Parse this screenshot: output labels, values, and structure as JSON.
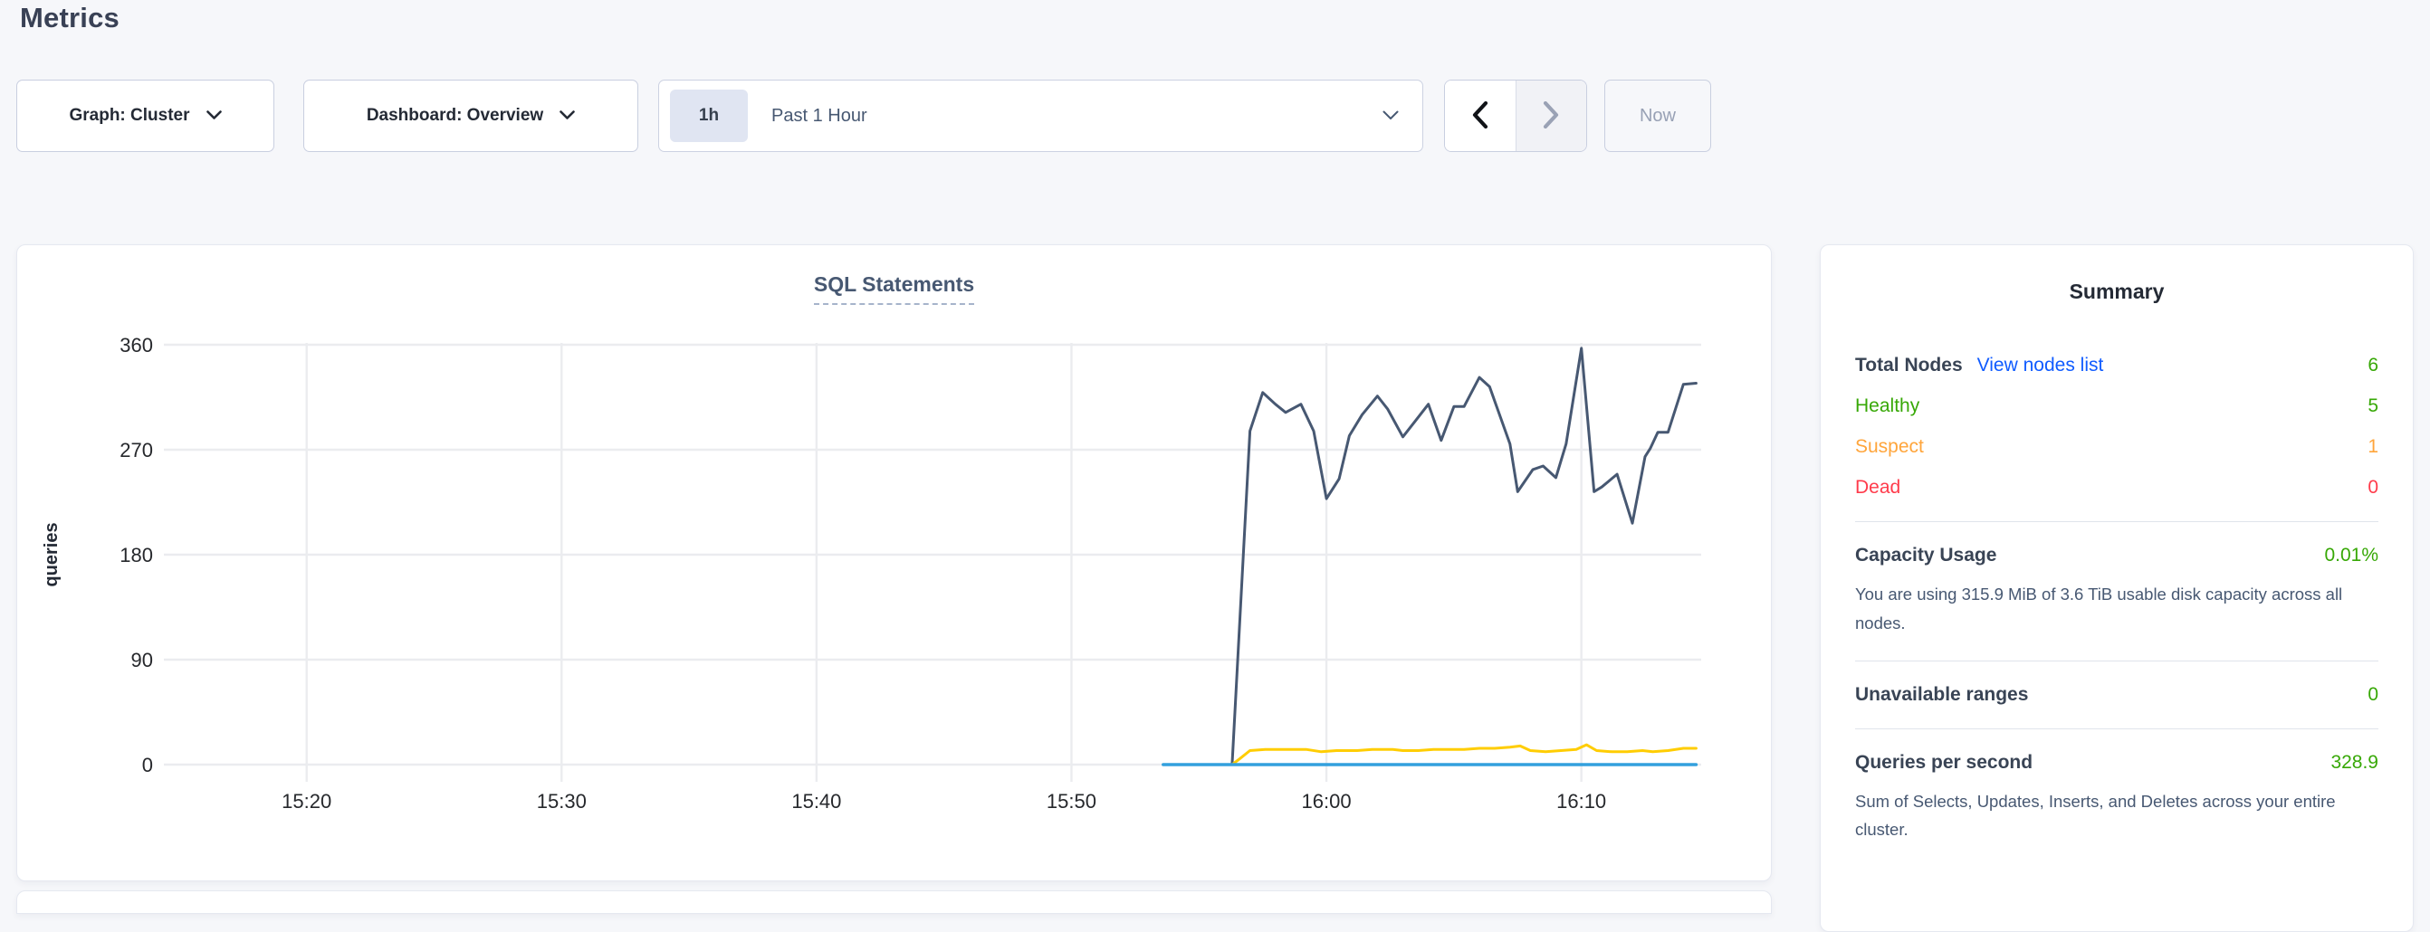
{
  "header": {
    "title": "Metrics"
  },
  "controls": {
    "graph_dropdown": {
      "label": "Graph: Cluster"
    },
    "dashboard_dropdown": {
      "label": "Dashboard: Overview"
    },
    "time_window": {
      "badge": "1h",
      "label": "Past 1 Hour"
    },
    "now_label": "Now"
  },
  "icons": {
    "dropdown_arrow": "chevron-down",
    "previous_timespan": "chevron-left",
    "next_timespan": "chevron-right"
  },
  "colors": {
    "green": "#37a806",
    "orange": "#ffa53b",
    "red": "#ff3b4b",
    "link": "#0f5bff"
  },
  "chart_data": {
    "type": "line",
    "title": "SQL Statements",
    "ylabel": "queries",
    "ylim": [
      0,
      360
    ],
    "yticks": [
      0,
      90,
      180,
      270,
      360
    ],
    "x_unit": "time of day (HH:MM)",
    "x_domain": [
      14.4,
      74.7
    ],
    "xticks": [
      {
        "t": 20,
        "label": "15:20"
      },
      {
        "t": 30,
        "label": "15:30"
      },
      {
        "t": 40,
        "label": "15:40"
      },
      {
        "t": 50,
        "label": "15:50"
      },
      {
        "t": 60,
        "label": "16:00"
      },
      {
        "t": 70,
        "label": "16:10"
      }
    ],
    "grid": true,
    "legend": "none",
    "series": [
      {
        "name": "statements-dark-navy",
        "color": "#475872",
        "width": 3,
        "points": [
          [
            56.3,
            0
          ],
          [
            57.0,
            286
          ],
          [
            57.5,
            319
          ],
          [
            58.0,
            309
          ],
          [
            58.4,
            302
          ],
          [
            59.0,
            309
          ],
          [
            59.5,
            286
          ],
          [
            60.0,
            228
          ],
          [
            60.5,
            245
          ],
          [
            60.9,
            282
          ],
          [
            61.4,
            300
          ],
          [
            62.0,
            316
          ],
          [
            62.4,
            305
          ],
          [
            63.0,
            281
          ],
          [
            63.5,
            295
          ],
          [
            64.0,
            309
          ],
          [
            64.5,
            278
          ],
          [
            65.0,
            307
          ],
          [
            65.4,
            307
          ],
          [
            66.0,
            332
          ],
          [
            66.4,
            324
          ],
          [
            67.2,
            275
          ],
          [
            67.5,
            234
          ],
          [
            68.1,
            253
          ],
          [
            68.5,
            256
          ],
          [
            69.0,
            246
          ],
          [
            69.4,
            275
          ],
          [
            70.0,
            357
          ],
          [
            70.5,
            234
          ],
          [
            70.8,
            238
          ],
          [
            71.4,
            249
          ],
          [
            72.0,
            207
          ],
          [
            72.5,
            264
          ],
          [
            72.7,
            271
          ],
          [
            73.0,
            285
          ],
          [
            73.4,
            285
          ],
          [
            74.0,
            326
          ],
          [
            74.5,
            327
          ]
        ]
      },
      {
        "name": "statements-yellow",
        "color": "#ffcd02",
        "width": 3,
        "points": [
          [
            56.3,
            0
          ],
          [
            56.6,
            5
          ],
          [
            57.0,
            12
          ],
          [
            57.6,
            13
          ],
          [
            58.4,
            13
          ],
          [
            59.2,
            13
          ],
          [
            59.8,
            11
          ],
          [
            60.4,
            12
          ],
          [
            61.2,
            12
          ],
          [
            61.8,
            13
          ],
          [
            62.6,
            13
          ],
          [
            63.0,
            12
          ],
          [
            63.6,
            12
          ],
          [
            64.2,
            13
          ],
          [
            64.8,
            13
          ],
          [
            65.4,
            13
          ],
          [
            66.0,
            14
          ],
          [
            66.6,
            14
          ],
          [
            67.2,
            15
          ],
          [
            67.6,
            16
          ],
          [
            68.0,
            12
          ],
          [
            68.6,
            11
          ],
          [
            69.2,
            12
          ],
          [
            69.8,
            13
          ],
          [
            70.2,
            17
          ],
          [
            70.6,
            12
          ],
          [
            71.2,
            11
          ],
          [
            71.8,
            11
          ],
          [
            72.4,
            12
          ],
          [
            72.8,
            11
          ],
          [
            73.4,
            12
          ],
          [
            74.0,
            14
          ],
          [
            74.5,
            14
          ]
        ]
      },
      {
        "name": "statements-light-blue",
        "color": "#33a0dd",
        "width": 3.5,
        "points": [
          [
            53.6,
            0
          ],
          [
            74.5,
            0
          ]
        ]
      }
    ]
  },
  "summary": {
    "title": "Summary",
    "nodes": {
      "label": "Total Nodes",
      "link_label": "View nodes list",
      "value": "6",
      "statuses": [
        {
          "label": "Healthy",
          "value": "5"
        },
        {
          "label": "Suspect",
          "value": "1"
        },
        {
          "label": "Dead",
          "value": "0"
        }
      ]
    },
    "capacity": {
      "label": "Capacity Usage",
      "value": "0.01%",
      "description": "You are using 315.9 MiB of 3.6 TiB usable disk capacity across all nodes."
    },
    "unavailable": {
      "label": "Unavailable ranges",
      "value": "0"
    },
    "qps": {
      "label": "Queries per second",
      "value": "328.9",
      "description": "Sum of Selects, Updates, Inserts, and Deletes across your entire cluster."
    }
  }
}
